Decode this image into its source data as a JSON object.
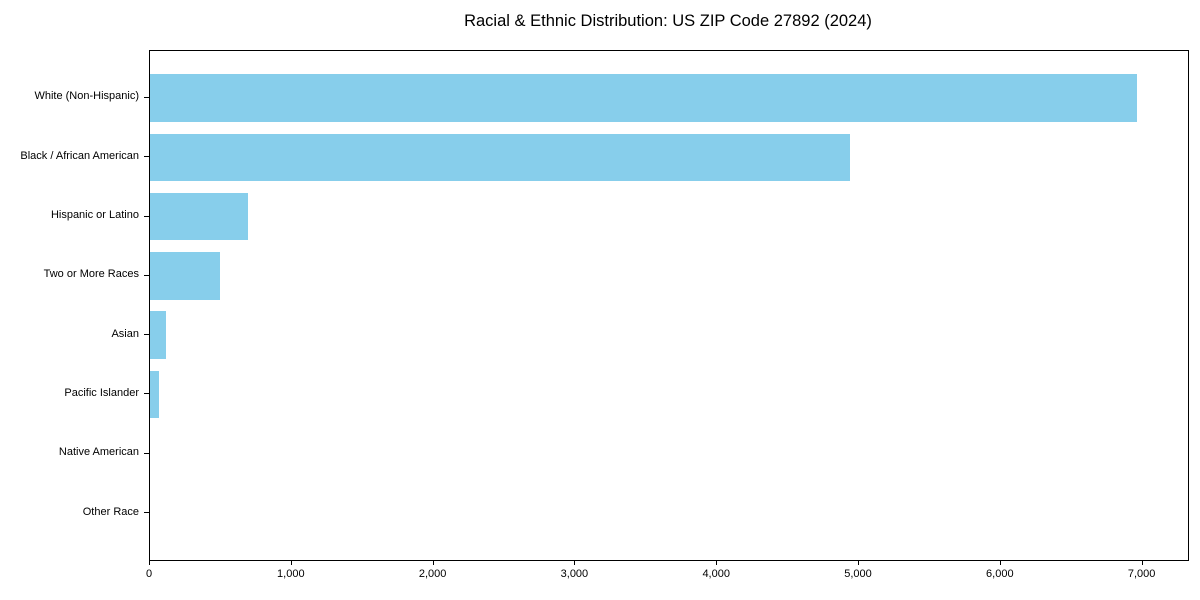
{
  "title": "Racial & Ethnic Distribution: US ZIP Code 27892 (2024)",
  "chart_data": {
    "type": "bar",
    "orientation": "horizontal",
    "title": "Racial & Ethnic Distribution: US ZIP Code 27892 (2024)",
    "xlabel": "",
    "ylabel": "",
    "categories": [
      "White (Non-Hispanic)",
      "Black / African American",
      "Hispanic or Latino",
      "Two or More Races",
      "Asian",
      "Pacific Islander",
      "Native American",
      "Other Race"
    ],
    "values": [
      6960,
      4935,
      690,
      495,
      115,
      65,
      0,
      0
    ],
    "xlim": [
      0,
      7320
    ],
    "x_ticks": [
      0,
      1000,
      2000,
      3000,
      4000,
      5000,
      6000,
      7000
    ],
    "x_tick_labels": [
      "0",
      "1,000",
      "2,000",
      "3,000",
      "4,000",
      "5,000",
      "6,000",
      "7,000"
    ],
    "bar_color": "#87CEEB",
    "grid": false,
    "legend": "none",
    "frame_color": "#000000"
  }
}
